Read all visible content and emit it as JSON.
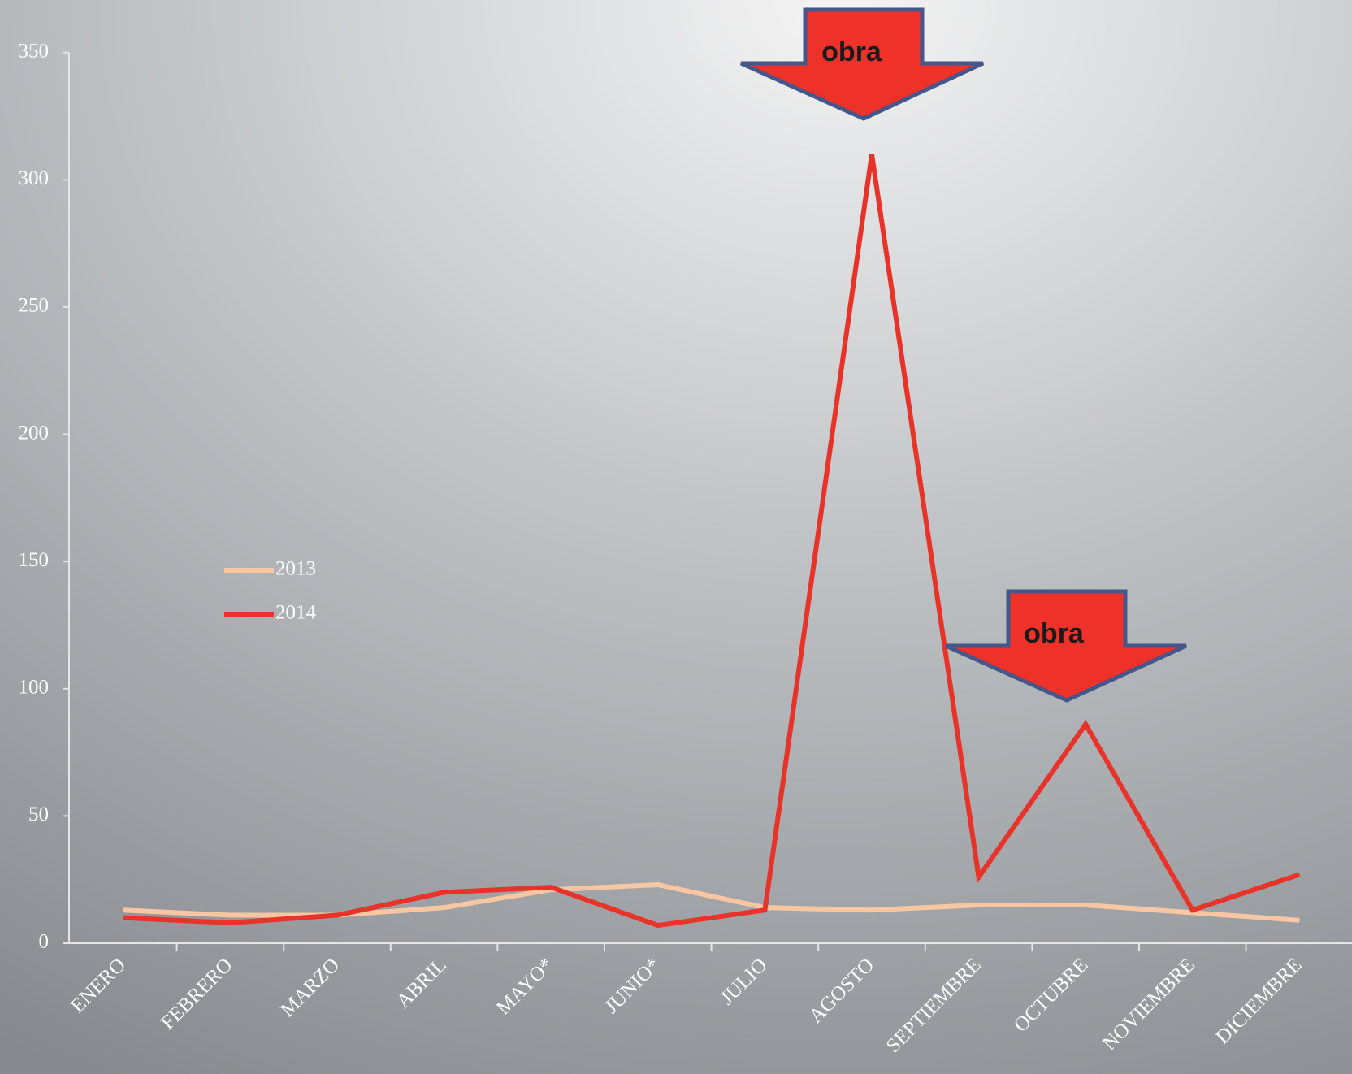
{
  "chart_data": {
    "type": "line",
    "categories": [
      "ENERO",
      "FEBRERO",
      "MARZO",
      "ABRIL",
      "MAYO*",
      "JUNIO*",
      "JULIO",
      "AGOSTO",
      "SEPTIEMBRE",
      "OCTUBRE",
      "NOVIEMBRE",
      "DICIEMBRE"
    ],
    "series": [
      {
        "name": "2013",
        "color": "#f9c6a3",
        "values": [
          13,
          11,
          11,
          14,
          21,
          23,
          14,
          13,
          15,
          15,
          12,
          9
        ]
      },
      {
        "name": "2014",
        "color": "#e8332a",
        "values": [
          10,
          8,
          11,
          20,
          22,
          7,
          13,
          310,
          26,
          86,
          13,
          27
        ]
      }
    ],
    "annotations": [
      "obra",
      "obra"
    ],
    "ylim": [
      0,
      350
    ],
    "yticks": [
      0,
      50,
      100,
      150,
      200,
      250,
      300,
      350
    ],
    "grid": false,
    "legend": "left"
  }
}
